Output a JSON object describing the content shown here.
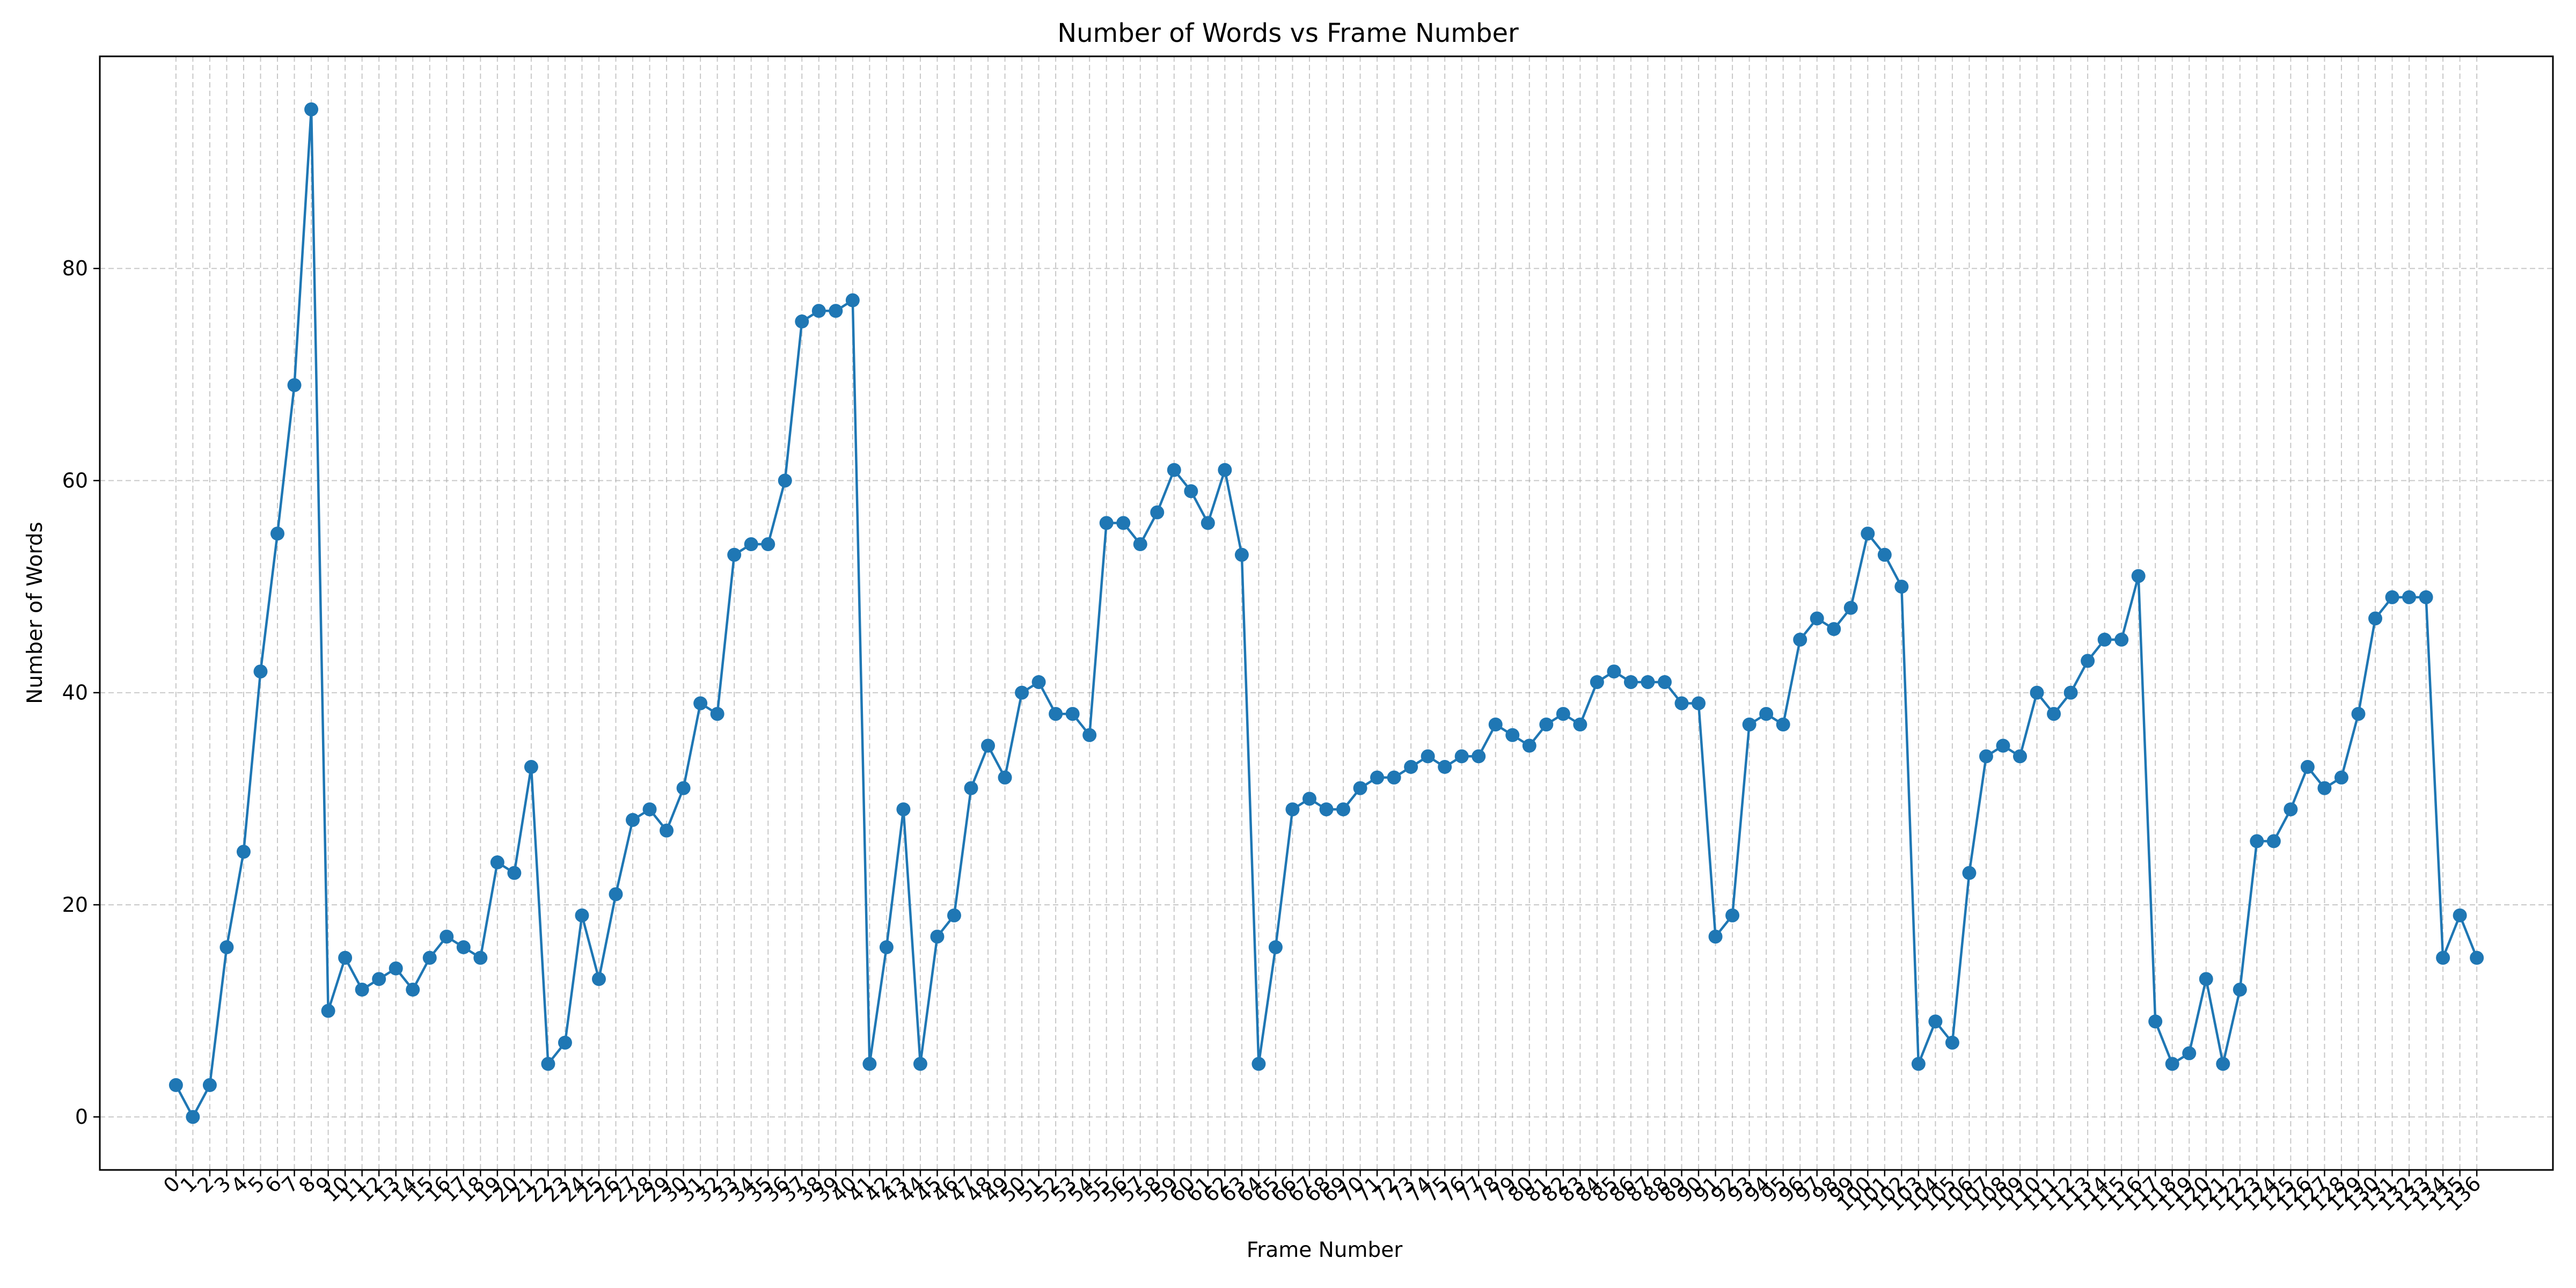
{
  "chart_data": {
    "type": "line",
    "title": "Number of Words vs Frame Number",
    "xlabel": "Frame Number",
    "ylabel": "Number of Words",
    "xlim": [
      -4.5,
      140.5
    ],
    "ylim": [
      -5,
      100
    ],
    "grid": true,
    "legend": "none",
    "colors": {
      "line": "#1f77b4",
      "grid": "#b0b0b0"
    },
    "y_ticks": [
      0,
      20,
      40,
      60,
      80
    ],
    "x": [
      0,
      1,
      2,
      3,
      4,
      5,
      6,
      7,
      8,
      9,
      10,
      11,
      12,
      13,
      14,
      15,
      16,
      17,
      18,
      19,
      20,
      21,
      22,
      23,
      24,
      25,
      26,
      27,
      28,
      29,
      30,
      31,
      32,
      33,
      34,
      35,
      36,
      37,
      38,
      39,
      40,
      41,
      42,
      43,
      44,
      45,
      46,
      47,
      48,
      49,
      50,
      51,
      52,
      53,
      54,
      55,
      56,
      57,
      58,
      59,
      60,
      61,
      62,
      63,
      64,
      65,
      66,
      67,
      68,
      69,
      70,
      71,
      72,
      73,
      74,
      75,
      76,
      77,
      78,
      79,
      80,
      81,
      82,
      83,
      84,
      85,
      86,
      87,
      88,
      89,
      90,
      91,
      92,
      93,
      94,
      95,
      96,
      97,
      98,
      99,
      100,
      101,
      102,
      103,
      104,
      105,
      106,
      107,
      108,
      109,
      110,
      111,
      112,
      113,
      114,
      115,
      116,
      117,
      118,
      119,
      120,
      121,
      122,
      123,
      124,
      125,
      126,
      127,
      128,
      129,
      130,
      131,
      132,
      133,
      134,
      135,
      136
    ],
    "series": [
      {
        "values": [
          3,
          0,
          3,
          16,
          25,
          42,
          55,
          69,
          95,
          10,
          15,
          12,
          13,
          14,
          12,
          15,
          17,
          16,
          15,
          24,
          23,
          33,
          5,
          7,
          19,
          13,
          21,
          28,
          29,
          27,
          31,
          39,
          38,
          53,
          54,
          54,
          60,
          75,
          76,
          76,
          77,
          5,
          16,
          29,
          5,
          17,
          19,
          31,
          35,
          32,
          40,
          41,
          38,
          38,
          36,
          56,
          56,
          54,
          57,
          61,
          59,
          56,
          61,
          53,
          5,
          16,
          29,
          30,
          29,
          29,
          31,
          32,
          32,
          33,
          34,
          33,
          34,
          34,
          37,
          36,
          35,
          37,
          38,
          37,
          41,
          42,
          41,
          41,
          41,
          39,
          39,
          17,
          19,
          37,
          38,
          37,
          45,
          47,
          46,
          48,
          55,
          53,
          50,
          5,
          9,
          7,
          23,
          34,
          35,
          34,
          40,
          38,
          40,
          43,
          45,
          45,
          51,
          9,
          5,
          6,
          13,
          5,
          12,
          26,
          26,
          29,
          33,
          31,
          32,
          38,
          47,
          49,
          49,
          49,
          15,
          19,
          15
        ]
      }
    ]
  }
}
